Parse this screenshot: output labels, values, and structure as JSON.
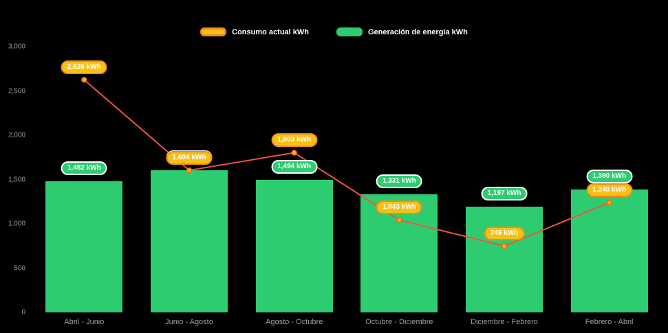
{
  "chart_data": {
    "type": "bar",
    "title": "",
    "categories": [
      "Abril - Junio",
      "Junio - Agosto",
      "Agosto - Octubre",
      "Octubre - Diciembre",
      "Diciembre - Febrero",
      "Febrero - Abril"
    ],
    "series": [
      {
        "name": "Consumo actual kWh",
        "type": "line",
        "values": [
          2626,
          1604,
          1803,
          1043,
          749,
          1240
        ],
        "labels": [
          "2,626 kWh",
          "1,604 kWh",
          "1,803 kWh",
          "1,043 kWh",
          "749 kWh",
          "1,240 kWh"
        ],
        "color": "#f0543c",
        "point_color": "#f9a825",
        "point_border": "#ef6c00",
        "badge_fill": "#f6c117",
        "badge_border": "#f08c1a"
      },
      {
        "name": "Generación de energía kWh",
        "type": "bar",
        "values": [
          1482,
          1604,
          1494,
          1331,
          1197,
          1390
        ],
        "labels": [
          "1,482 kWh",
          "1,604 kWh",
          "1,494 kWh",
          "1,331 kWh",
          "1,197 kWh",
          "1,390 kWh"
        ],
        "color": "#2ecc71",
        "badge_fill": "#2ecc71",
        "badge_border": "#ffffff"
      }
    ],
    "y_axis": {
      "min": 0,
      "max": 3000,
      "step": 500,
      "tick_labels": [
        "0",
        "500",
        "1,000",
        "1,500",
        "2,000",
        "2,500",
        "3,000"
      ]
    },
    "legend_position": "top",
    "grid": false,
    "background": "#000000",
    "tick_color": "#9c9c9c"
  }
}
